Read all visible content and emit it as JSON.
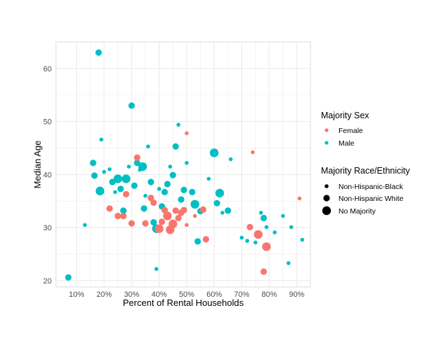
{
  "chart_data": {
    "type": "scatter",
    "xlabel": "Percent of Rental Households",
    "ylabel": "Median Age",
    "xlim": [
      0.025,
      0.95
    ],
    "ylim": [
      18.8,
      65.0
    ],
    "x_ticks": [
      0.1,
      0.2,
      0.3,
      0.4,
      0.5,
      0.6,
      0.7,
      0.8,
      0.9
    ],
    "x_tick_labels": [
      "10%",
      "20%",
      "30%",
      "40%",
      "50%",
      "60%",
      "70%",
      "80%",
      "90%"
    ],
    "y_ticks": [
      20,
      30,
      40,
      50,
      60
    ],
    "y_tick_labels": [
      "20",
      "30",
      "40",
      "50",
      "60"
    ],
    "grid": true,
    "legend_position": "right",
    "color_legend": {
      "title": "Majority Sex",
      "entries": [
        {
          "label": "Female",
          "color": "#F8766D"
        },
        {
          "label": "Male",
          "color": "#00BFC4"
        }
      ]
    },
    "size_legend": {
      "title": "Majority Race/Ethnicity",
      "entries": [
        {
          "label": "Non-Hispanic-Black",
          "size": "small"
        },
        {
          "label": "Non-Hispanic White",
          "size": "medium"
        },
        {
          "label": "No Majority",
          "size": "large"
        }
      ]
    },
    "series": [
      {
        "name": "Female",
        "color": "#F8766D",
        "points": [
          {
            "x": 0.22,
            "y": 33.6,
            "race": "Non-Hispanic White"
          },
          {
            "x": 0.25,
            "y": 32.2,
            "race": "Non-Hispanic White"
          },
          {
            "x": 0.27,
            "y": 32.2,
            "race": "Non-Hispanic White"
          },
          {
            "x": 0.28,
            "y": 36.3,
            "race": "Non-Hispanic White"
          },
          {
            "x": 0.3,
            "y": 30.8,
            "race": "Non-Hispanic White"
          },
          {
            "x": 0.32,
            "y": 43.2,
            "race": "Non-Hispanic White"
          },
          {
            "x": 0.35,
            "y": 30.8,
            "race": "Non-Hispanic White"
          },
          {
            "x": 0.37,
            "y": 35.6,
            "race": "Non-Hispanic White"
          },
          {
            "x": 0.38,
            "y": 34.7,
            "race": "Non-Hispanic White"
          },
          {
            "x": 0.4,
            "y": 29.8,
            "race": "No Majority"
          },
          {
            "x": 0.41,
            "y": 31.1,
            "race": "Non-Hispanic White"
          },
          {
            "x": 0.42,
            "y": 33.3,
            "race": "Non-Hispanic White"
          },
          {
            "x": 0.43,
            "y": 32.2,
            "race": "No Majority"
          },
          {
            "x": 0.44,
            "y": 29.6,
            "race": "No Majority"
          },
          {
            "x": 0.45,
            "y": 30.7,
            "race": "No Majority"
          },
          {
            "x": 0.46,
            "y": 33.2,
            "race": "Non-Hispanic White"
          },
          {
            "x": 0.47,
            "y": 31.8,
            "race": "Non-Hispanic White"
          },
          {
            "x": 0.48,
            "y": 32.8,
            "race": "Non-Hispanic White"
          },
          {
            "x": 0.49,
            "y": 33.3,
            "race": "Non-Hispanic White"
          },
          {
            "x": 0.5,
            "y": 30.5,
            "race": "Non-Hispanic-Black"
          },
          {
            "x": 0.5,
            "y": 47.8,
            "race": "Non-Hispanic-Black"
          },
          {
            "x": 0.53,
            "y": 32.2,
            "race": "Non-Hispanic-Black"
          },
          {
            "x": 0.56,
            "y": 33.4,
            "race": "Non-Hispanic White"
          },
          {
            "x": 0.57,
            "y": 27.8,
            "race": "Non-Hispanic White"
          },
          {
            "x": 0.73,
            "y": 30.1,
            "race": "Non-Hispanic White"
          },
          {
            "x": 0.74,
            "y": 44.2,
            "race": "Non-Hispanic-Black"
          },
          {
            "x": 0.76,
            "y": 28.7,
            "race": "No Majority"
          },
          {
            "x": 0.78,
            "y": 21.7,
            "race": "Non-Hispanic White"
          },
          {
            "x": 0.79,
            "y": 26.4,
            "race": "No Majority"
          },
          {
            "x": 0.91,
            "y": 35.5,
            "race": "Non-Hispanic-Black"
          }
        ]
      },
      {
        "name": "Male",
        "color": "#00BFC4",
        "points": [
          {
            "x": 0.07,
            "y": 20.6,
            "race": "Non-Hispanic White"
          },
          {
            "x": 0.13,
            "y": 30.5,
            "race": "Non-Hispanic-Black"
          },
          {
            "x": 0.16,
            "y": 42.2,
            "race": "Non-Hispanic White"
          },
          {
            "x": 0.165,
            "y": 39.8,
            "race": "Non-Hispanic White"
          },
          {
            "x": 0.18,
            "y": 63.0,
            "race": "Non-Hispanic White"
          },
          {
            "x": 0.185,
            "y": 36.9,
            "race": "No Majority"
          },
          {
            "x": 0.19,
            "y": 46.6,
            "race": "Non-Hispanic-Black"
          },
          {
            "x": 0.2,
            "y": 40.5,
            "race": "Non-Hispanic-Black"
          },
          {
            "x": 0.22,
            "y": 41.0,
            "race": "Non-Hispanic-Black"
          },
          {
            "x": 0.23,
            "y": 38.6,
            "race": "Non-Hispanic White"
          },
          {
            "x": 0.24,
            "y": 36.7,
            "race": "Non-Hispanic-Black"
          },
          {
            "x": 0.25,
            "y": 39.2,
            "race": "No Majority"
          },
          {
            "x": 0.26,
            "y": 37.3,
            "race": "Non-Hispanic White"
          },
          {
            "x": 0.27,
            "y": 33.2,
            "race": "Non-Hispanic White"
          },
          {
            "x": 0.28,
            "y": 39.2,
            "race": "No Majority"
          },
          {
            "x": 0.29,
            "y": 41.5,
            "race": "Non-Hispanic-Black"
          },
          {
            "x": 0.3,
            "y": 53.0,
            "race": "Non-Hispanic White"
          },
          {
            "x": 0.31,
            "y": 37.9,
            "race": "Non-Hispanic White"
          },
          {
            "x": 0.32,
            "y": 42.2,
            "race": "Non-Hispanic White"
          },
          {
            "x": 0.33,
            "y": 40.9,
            "race": "Non-Hispanic-Black"
          },
          {
            "x": 0.34,
            "y": 41.5,
            "race": "No Majority"
          },
          {
            "x": 0.345,
            "y": 33.6,
            "race": "Non-Hispanic White"
          },
          {
            "x": 0.35,
            "y": 36.0,
            "race": "Non-Hispanic-Black"
          },
          {
            "x": 0.36,
            "y": 45.3,
            "race": "Non-Hispanic-Black"
          },
          {
            "x": 0.37,
            "y": 38.6,
            "race": "Non-Hispanic White"
          },
          {
            "x": 0.38,
            "y": 31.0,
            "race": "Non-Hispanic White"
          },
          {
            "x": 0.39,
            "y": 29.8,
            "race": "No Majority"
          },
          {
            "x": 0.39,
            "y": 22.2,
            "race": "Non-Hispanic-Black"
          },
          {
            "x": 0.4,
            "y": 37.3,
            "race": "Non-Hispanic-Black"
          },
          {
            "x": 0.41,
            "y": 34.0,
            "race": "Non-Hispanic White"
          },
          {
            "x": 0.42,
            "y": 36.7,
            "race": "Non-Hispanic White"
          },
          {
            "x": 0.43,
            "y": 38.2,
            "race": "Non-Hispanic White"
          },
          {
            "x": 0.44,
            "y": 41.5,
            "race": "Non-Hispanic-Black"
          },
          {
            "x": 0.45,
            "y": 39.9,
            "race": "Non-Hispanic White"
          },
          {
            "x": 0.46,
            "y": 45.3,
            "race": "Non-Hispanic White"
          },
          {
            "x": 0.47,
            "y": 49.4,
            "race": "Non-Hispanic-Black"
          },
          {
            "x": 0.48,
            "y": 35.3,
            "race": "Non-Hispanic White"
          },
          {
            "x": 0.49,
            "y": 37.1,
            "race": "Non-Hispanic White"
          },
          {
            "x": 0.5,
            "y": 42.2,
            "race": "Non-Hispanic-Black"
          },
          {
            "x": 0.52,
            "y": 36.7,
            "race": "Non-Hispanic White"
          },
          {
            "x": 0.53,
            "y": 34.4,
            "race": "No Majority"
          },
          {
            "x": 0.54,
            "y": 27.4,
            "race": "Non-Hispanic White"
          },
          {
            "x": 0.55,
            "y": 33.1,
            "race": "Non-Hispanic White"
          },
          {
            "x": 0.58,
            "y": 39.2,
            "race": "Non-Hispanic-Black"
          },
          {
            "x": 0.6,
            "y": 44.1,
            "race": "No Majority"
          },
          {
            "x": 0.61,
            "y": 34.6,
            "race": "Non-Hispanic White"
          },
          {
            "x": 0.62,
            "y": 36.5,
            "race": "No Majority"
          },
          {
            "x": 0.63,
            "y": 32.8,
            "race": "Non-Hispanic-Black"
          },
          {
            "x": 0.65,
            "y": 33.2,
            "race": "Non-Hispanic White"
          },
          {
            "x": 0.66,
            "y": 42.9,
            "race": "Non-Hispanic-Black"
          },
          {
            "x": 0.7,
            "y": 28.1,
            "race": "Non-Hispanic-Black"
          },
          {
            "x": 0.72,
            "y": 27.5,
            "race": "Non-Hispanic-Black"
          },
          {
            "x": 0.75,
            "y": 27.2,
            "race": "Non-Hispanic-Black"
          },
          {
            "x": 0.77,
            "y": 32.8,
            "race": "Non-Hispanic-Black"
          },
          {
            "x": 0.78,
            "y": 31.8,
            "race": "Non-Hispanic White"
          },
          {
            "x": 0.79,
            "y": 30.1,
            "race": "Non-Hispanic-Black"
          },
          {
            "x": 0.82,
            "y": 29.1,
            "race": "Non-Hispanic-Black"
          },
          {
            "x": 0.85,
            "y": 32.2,
            "race": "Non-Hispanic-Black"
          },
          {
            "x": 0.87,
            "y": 23.3,
            "race": "Non-Hispanic-Black"
          },
          {
            "x": 0.88,
            "y": 30.1,
            "race": "Non-Hispanic-Black"
          },
          {
            "x": 0.92,
            "y": 27.7,
            "race": "Non-Hispanic-Black"
          }
        ]
      }
    ]
  }
}
